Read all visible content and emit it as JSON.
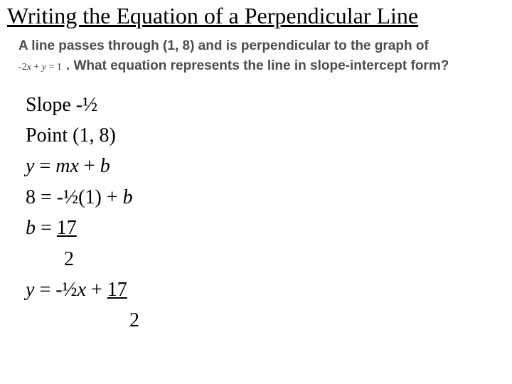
{
  "title": "Writing the Equation of a Perpendicular Line",
  "problem": {
    "line1": "A line passes through (1, 8) and is perpendicular to the graph of",
    "eq_prefix": "-2",
    "eq_x": "x",
    "eq_mid": " + ",
    "eq_y": "y",
    "eq_suffix": " = 1",
    "line2_rest": ". What equation represents the line in slope-intercept form?"
  },
  "work": {
    "l1": "Slope -½",
    "l2": "Point (1, 8)",
    "l3_y": "y",
    "l3_mid": " = ",
    "l3_mx": "mx",
    "l3_plus": " + ",
    "l3_b": "b",
    "l4_pre": "8 = -½(1) + ",
    "l4_b": "b",
    "l5_b": "b",
    "l5_mid": " = ",
    "l5_frac_top": "17",
    "l6_frac_bot": "2",
    "l7_y": "y",
    "l7_mid": " = -½",
    "l7_x": "x",
    "l7_plus": " + ",
    "l7_frac_top": "17",
    "l8_frac_bot": "2"
  }
}
